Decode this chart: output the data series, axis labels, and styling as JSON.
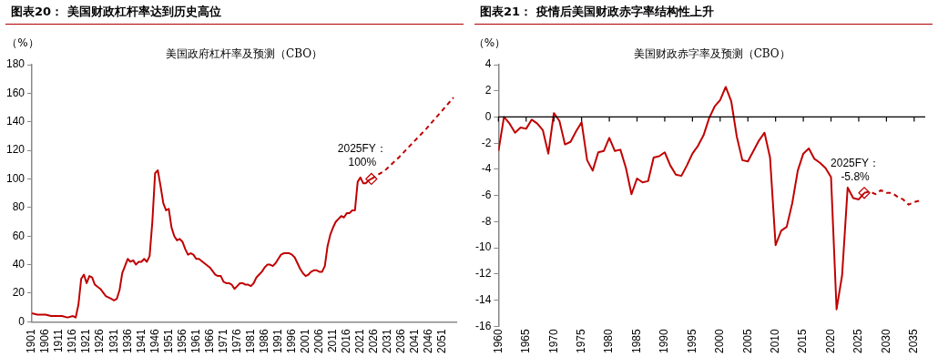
{
  "chart_data": [
    {
      "type": "line",
      "title": "图表20：  美国财政杠杆率达到历史高位",
      "subtitle": "美国政府杠杆率及预测（CBO）",
      "ylabel": "（%）",
      "legend": false,
      "grid": false,
      "marker": "none",
      "xlim": [
        1901,
        2056
      ],
      "xticks": [
        1901,
        1906,
        1911,
        1916,
        1921,
        1926,
        1931,
        1936,
        1941,
        1946,
        1951,
        1956,
        1961,
        1966,
        1971,
        1976,
        1981,
        1986,
        1991,
        1996,
        2001,
        2006,
        2011,
        2016,
        2021,
        2026,
        2031,
        2036,
        2041,
        2046,
        2051
      ],
      "ylim": [
        0,
        180
      ],
      "yticks": [
        0,
        20,
        40,
        60,
        80,
        100,
        120,
        140,
        160,
        180
      ],
      "series": [
        {
          "type": "line",
          "line_style": "solid",
          "color": "#c00000",
          "x": [
            1901,
            1903,
            1906,
            1908,
            1912,
            1914,
            1916,
            1917,
            1918,
            1919,
            1920,
            1921,
            1922,
            1923,
            1924,
            1926,
            1928,
            1930,
            1931,
            1932,
            1933,
            1934,
            1935,
            1936,
            1937,
            1938,
            1939,
            1940,
            1941,
            1942,
            1943,
            1944,
            1945,
            1946,
            1947,
            1948,
            1949,
            1950,
            1951,
            1952,
            1953,
            1954,
            1955,
            1956,
            1957,
            1958,
            1959,
            1960,
            1961,
            1962,
            1964,
            1966,
            1968,
            1969,
            1970,
            1971,
            1972,
            1973,
            1974,
            1975,
            1976,
            1977,
            1978,
            1979,
            1980,
            1981,
            1982,
            1983,
            1984,
            1985,
            1986,
            1987,
            1988,
            1989,
            1990,
            1991,
            1992,
            1993,
            1994,
            1995,
            1996,
            1997,
            1998,
            1999,
            2000,
            2001,
            2002,
            2003,
            2004,
            2005,
            2006,
            2007,
            2008,
            2009,
            2010,
            2011,
            2012,
            2013,
            2014,
            2015,
            2016,
            2017,
            2018,
            2019,
            2020,
            2021,
            2022,
            2023,
            2024,
            2025
          ],
          "values": [
            6,
            5,
            5,
            4,
            4,
            3,
            4,
            3,
            12,
            30,
            33,
            27,
            32,
            31,
            26,
            23,
            18,
            16,
            15,
            16,
            22,
            34,
            39,
            44,
            42,
            43,
            40,
            42,
            42,
            44,
            42,
            46,
            70,
            104,
            106,
            95,
            83,
            78,
            79,
            66,
            60,
            57,
            58,
            56,
            51,
            47,
            48,
            47,
            44,
            44,
            41,
            38,
            33,
            32,
            32,
            28,
            27,
            27,
            26,
            23,
            25,
            27,
            27,
            26,
            26,
            25,
            27,
            31,
            33,
            35,
            38,
            40,
            40,
            39,
            41,
            44,
            47,
            48,
            48,
            48,
            47,
            45,
            41,
            37,
            34,
            32,
            33,
            35,
            36,
            36,
            35,
            35,
            39,
            53,
            61,
            66,
            70,
            72,
            74,
            73,
            76,
            76,
            78,
            78,
            98,
            101,
            97,
            97,
            99,
            100
          ]
        },
        {
          "type": "line",
          "line_style": "dashed",
          "color": "#c00000",
          "x": [
            2025,
            2030,
            2035,
            2040,
            2045,
            2050,
            2055
          ],
          "values": [
            100,
            106,
            115,
            125,
            135,
            146,
            157
          ]
        },
        {
          "type": "scatter",
          "marker": "diamond",
          "color": "#c00000",
          "x": [
            2025
          ],
          "values": [
            100
          ]
        }
      ],
      "annotations": [
        {
          "text": "2025FY：\n100%",
          "x": 2025,
          "y": 100
        }
      ]
    },
    {
      "type": "line",
      "title": "图表21：  疫情后美国财政赤字率结构性上升",
      "subtitle": "美国财政赤字率及预测（CBO）",
      "ylabel": "（%）",
      "legend": false,
      "grid": false,
      "marker": "none",
      "xlim": [
        1960,
        2037
      ],
      "xticks": [
        1960,
        1965,
        1970,
        1975,
        1980,
        1985,
        1990,
        1995,
        2000,
        2005,
        2010,
        2015,
        2020,
        2025,
        2030,
        2035
      ],
      "ylim": [
        -16,
        4
      ],
      "yticks": [
        -16,
        -14,
        -12,
        -10,
        -8,
        -6,
        -4,
        -2,
        0,
        2,
        4
      ],
      "ref_lines": [
        {
          "axis": "y",
          "value": 0,
          "color": "#000000"
        }
      ],
      "series": [
        {
          "type": "line",
          "line_style": "solid",
          "color": "#c00000",
          "x": [
            1960,
            1961,
            1962,
            1963,
            1964,
            1965,
            1966,
            1967,
            1968,
            1969,
            1970,
            1971,
            1972,
            1973,
            1974,
            1975,
            1976,
            1977,
            1978,
            1979,
            1980,
            1981,
            1982,
            1983,
            1984,
            1985,
            1986,
            1987,
            1988,
            1989,
            1990,
            1991,
            1992,
            1993,
            1994,
            1995,
            1996,
            1997,
            1998,
            1999,
            2000,
            2001,
            2002,
            2003,
            2004,
            2005,
            2006,
            2007,
            2008,
            2009,
            2010,
            2011,
            2012,
            2013,
            2014,
            2015,
            2016,
            2017,
            2018,
            2019,
            2020,
            2021,
            2022,
            2023,
            2024,
            2025,
            2026
          ],
          "values": [
            -2.6,
            0,
            -0.5,
            -1.2,
            -0.8,
            -0.9,
            -0.2,
            -0.5,
            -1,
            -2.8,
            0.3,
            -0.3,
            -2.1,
            -1.9,
            -1.1,
            -0.4,
            -3.3,
            -4.1,
            -2.7,
            -2.6,
            -1.6,
            -2.6,
            -2.5,
            -3.9,
            -5.9,
            -4.7,
            -5,
            -4.9,
            -3.1,
            -3,
            -2.7,
            -3.7,
            -4.4,
            -4.5,
            -3.7,
            -2.8,
            -2.2,
            -1.4,
            -0.1,
            0.8,
            1.3,
            2.3,
            1.2,
            -1.5,
            -3.3,
            -3.4,
            -2.6,
            -1.8,
            -1.2,
            -3.1,
            -9.8,
            -8.7,
            -8.4,
            -6.6,
            -4.1,
            -2.8,
            -2.4,
            -3.2,
            -3.5,
            -3.9,
            -4.6,
            -14.7,
            -12.1,
            -5.4,
            -6.2,
            -6.3,
            -5.8
          ]
        },
        {
          "type": "line",
          "line_style": "dashed",
          "color": "#c00000",
          "x": [
            2026,
            2027,
            2028,
            2029,
            2030,
            2031,
            2032,
            2033,
            2034,
            2035,
            2036
          ],
          "values": [
            -5.8,
            -5.7,
            -5.9,
            -5.6,
            -5.8,
            -5.8,
            -6.1,
            -6.3,
            -6.7,
            -6.5,
            -6.4
          ]
        },
        {
          "type": "scatter",
          "marker": "diamond",
          "color": "#c00000",
          "x": [
            2026
          ],
          "values": [
            -5.8
          ]
        }
      ],
      "annotations": [
        {
          "text": "2025FY：\n-5.8%",
          "x": 2026,
          "y": -5.8
        }
      ]
    }
  ]
}
